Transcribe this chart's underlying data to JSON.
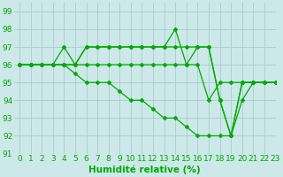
{
  "title": "",
  "xlabel": "Humidité relative (%)",
  "ylabel": "",
  "background_color": "#cce8e8",
  "grid_color": "#aacccc",
  "line_color": "#00aa00",
  "xlim": [
    -0.5,
    23
  ],
  "ylim": [
    91,
    99.5
  ],
  "yticks": [
    91,
    92,
    93,
    94,
    95,
    96,
    97,
    98,
    99
  ],
  "xticks": [
    0,
    1,
    2,
    3,
    4,
    5,
    6,
    7,
    8,
    9,
    10,
    11,
    12,
    13,
    14,
    15,
    16,
    17,
    18,
    19,
    20,
    21,
    22,
    23
  ],
  "series": [
    [
      96,
      96,
      96,
      96,
      97,
      96,
      97,
      97,
      97,
      97,
      97,
      97,
      97,
      97,
      98,
      96,
      97,
      97,
      94,
      92,
      95,
      95,
      95,
      95
    ],
    [
      96,
      96,
      96,
      96,
      96,
      96,
      97,
      97,
      97,
      97,
      97,
      97,
      97,
      97,
      97,
      97,
      97,
      97,
      94,
      92,
      95,
      95,
      95,
      95
    ],
    [
      96,
      96,
      96,
      96,
      96,
      96,
      96,
      96,
      96,
      96,
      96,
      96,
      96,
      96,
      96,
      96,
      96,
      94,
      95,
      95,
      95,
      95,
      95,
      95
    ],
    [
      96,
      96,
      96,
      96,
      96,
      95.5,
      95,
      95,
      95,
      94.5,
      94,
      94,
      93.5,
      93,
      93,
      92.5,
      92,
      92,
      92,
      92,
      94,
      95,
      95,
      95
    ]
  ],
  "marker": "D",
  "markersize": 2.0,
  "linewidth": 0.9,
  "xlabel_fontsize": 7.5,
  "tick_fontsize": 6.5
}
